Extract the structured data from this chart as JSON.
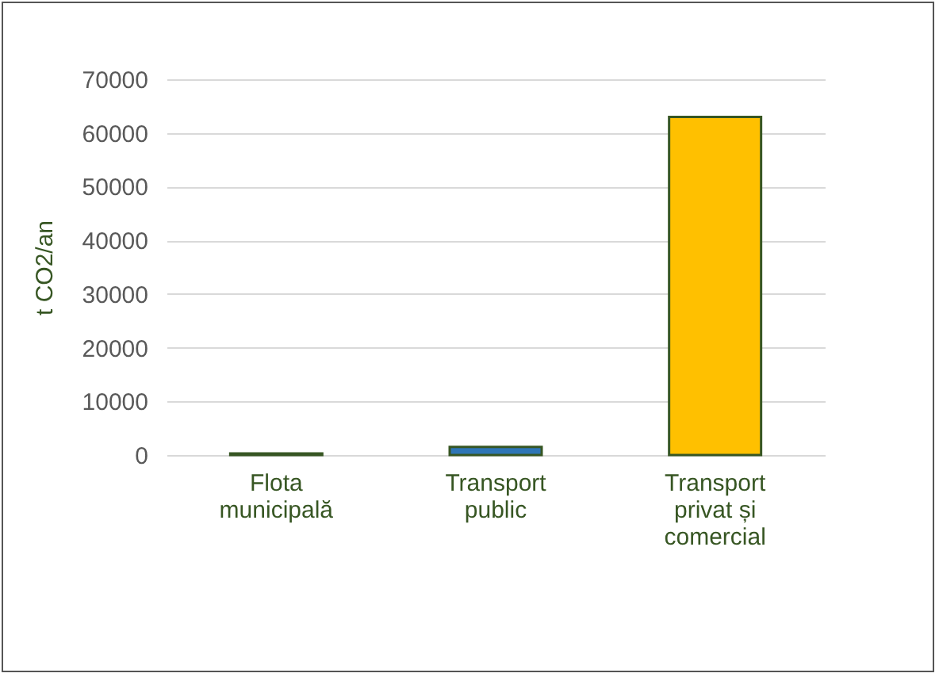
{
  "chart_data": {
    "type": "bar",
    "ylabel": "t CO2/an",
    "categories": [
      "Flota municipală",
      "Transport public",
      "Transport privat și comercial"
    ],
    "values": [
      300,
      1500,
      63000
    ],
    "colors": [
      "#8faa7c",
      "#2e75b6",
      "#ffc000"
    ],
    "ylim": [
      0,
      70000
    ],
    "yticks": [
      0,
      10000,
      20000,
      30000,
      40000,
      50000,
      60000,
      70000
    ],
    "grid": "y"
  }
}
